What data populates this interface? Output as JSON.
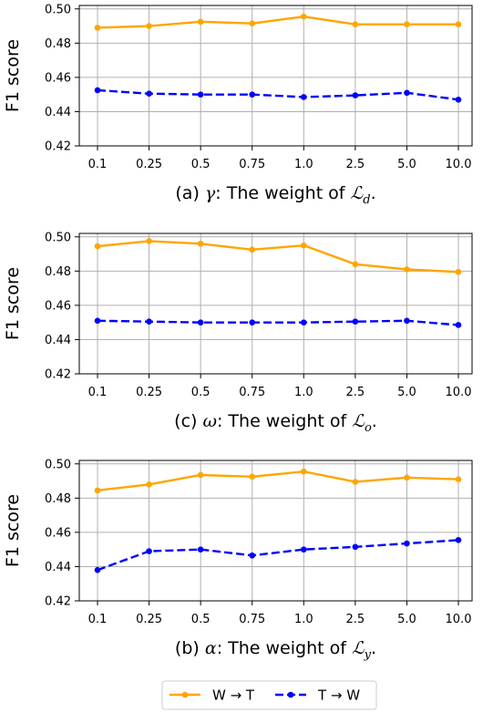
{
  "chart_data": [
    {
      "type": "line",
      "categories": [
        "0.1",
        "0.25",
        "0.5",
        "0.75",
        "1.0",
        "2.5",
        "5.0",
        "10.0"
      ],
      "series": [
        {
          "name": "W → T",
          "values": [
            0.489,
            0.49,
            0.4925,
            0.4915,
            0.4955,
            0.491,
            0.491,
            0.491
          ]
        },
        {
          "name": "T → W",
          "values": [
            0.4525,
            0.4505,
            0.45,
            0.45,
            0.4485,
            0.4495,
            0.451,
            0.447
          ]
        }
      ],
      "ylabel": "F1 score",
      "yticks": [
        "0.42",
        "0.44",
        "0.46",
        "0.48",
        "0.50"
      ],
      "ylim": [
        0.42,
        0.502
      ],
      "caption": {
        "prefix": "(a) ",
        "symbol": "γ",
        "middle": ": The weight of ",
        "script": "ℒ",
        "sub": "d",
        "suffix": "."
      },
      "grid": true
    },
    {
      "type": "line",
      "categories": [
        "0.1",
        "0.25",
        "0.5",
        "0.75",
        "1.0",
        "2.5",
        "5.0",
        "10.0"
      ],
      "series": [
        {
          "name": "W → T",
          "values": [
            0.4945,
            0.4975,
            0.496,
            0.4925,
            0.495,
            0.484,
            0.481,
            0.4795
          ]
        },
        {
          "name": "T → W",
          "values": [
            0.451,
            0.4505,
            0.45,
            0.45,
            0.45,
            0.4505,
            0.451,
            0.4485
          ]
        }
      ],
      "ylabel": "F1 score",
      "yticks": [
        "0.42",
        "0.44",
        "0.46",
        "0.48",
        "0.50"
      ],
      "ylim": [
        0.42,
        0.502
      ],
      "caption": {
        "prefix": "(c) ",
        "symbol": "ω",
        "middle": ": The weight of ",
        "script": "ℒ",
        "sub": "o",
        "suffix": "."
      },
      "grid": true
    },
    {
      "type": "line",
      "categories": [
        "0.1",
        "0.25",
        "0.5",
        "0.75",
        "1.0",
        "2.5",
        "5.0",
        "10.0"
      ],
      "series": [
        {
          "name": "W → T",
          "values": [
            0.4845,
            0.488,
            0.4935,
            0.4925,
            0.4955,
            0.4895,
            0.492,
            0.491
          ]
        },
        {
          "name": "T → W",
          "values": [
            0.438,
            0.449,
            0.45,
            0.4465,
            0.45,
            0.4515,
            0.4535,
            0.4555
          ]
        }
      ],
      "ylabel": "F1 score",
      "yticks": [
        "0.42",
        "0.44",
        "0.46",
        "0.48",
        "0.50"
      ],
      "ylim": [
        0.42,
        0.502
      ],
      "caption": {
        "prefix": "(b) ",
        "symbol": "α",
        "middle": ": The weight of ",
        "script": "ℒ",
        "sub": "y",
        "suffix": "."
      },
      "grid": true
    }
  ],
  "legend": {
    "items": [
      {
        "label": "W → T",
        "color": "#ffa500",
        "style": "solid"
      },
      {
        "label": "T → W",
        "color": "#0000ff",
        "style": "dashed"
      }
    ],
    "placement": "bottom-center"
  },
  "colors": {
    "wt": "#ffa500",
    "tw": "#0000ff",
    "grid": "#b0b0b0"
  }
}
